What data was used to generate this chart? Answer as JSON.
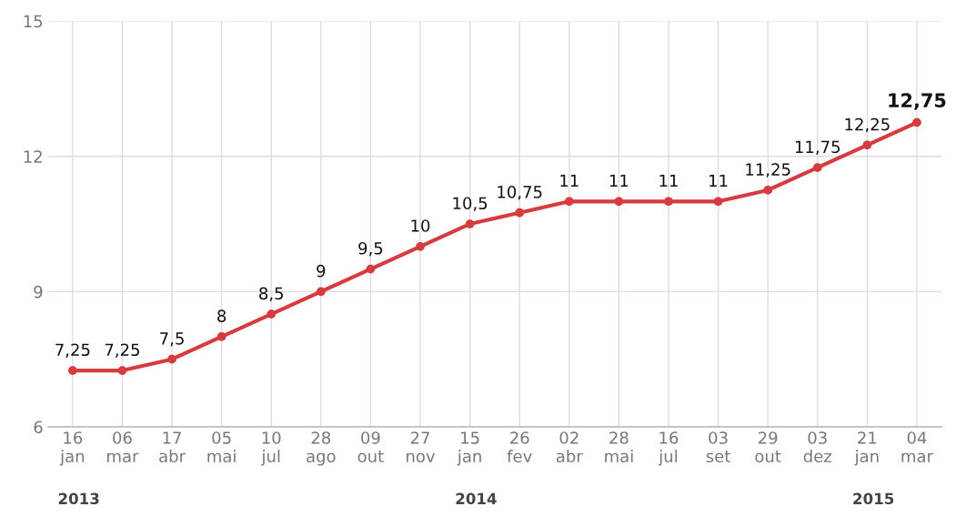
{
  "chart_data": {
    "type": "line",
    "categories": [
      "16\njan",
      "06\nmar",
      "17\nabr",
      "05\nmai",
      "10\njul",
      "28\nago",
      "09\nout",
      "27\nnov",
      "15\njan",
      "26\nfev",
      "02\nabr",
      "28\nmai",
      "16\njul",
      "03\nset",
      "29\nout",
      "03\ndez",
      "21\njan",
      "04\nmar"
    ],
    "series": [
      {
        "color": "#d63b3f",
        "values": [
          7.25,
          7.25,
          7.5,
          8,
          8.5,
          9,
          9.5,
          10,
          10.5,
          10.75,
          11,
          11,
          11,
          11,
          11.25,
          11.75,
          12.25,
          12.75
        ],
        "value_labels": [
          "7,25",
          "7,25",
          "7,5",
          "8",
          "8,5",
          "9",
          "9,5",
          "10",
          "10,5",
          "10,75",
          "11",
          "11",
          "11",
          "11",
          "11,25",
          "11,75",
          "12,25",
          "12,75"
        ]
      }
    ],
    "ylim": [
      6,
      15
    ],
    "yticks": [
      6,
      9,
      12,
      15
    ],
    "grid": true,
    "marker": "circle",
    "line_style": "solid",
    "annotations": [
      "2013",
      "2014",
      "2015"
    ]
  }
}
